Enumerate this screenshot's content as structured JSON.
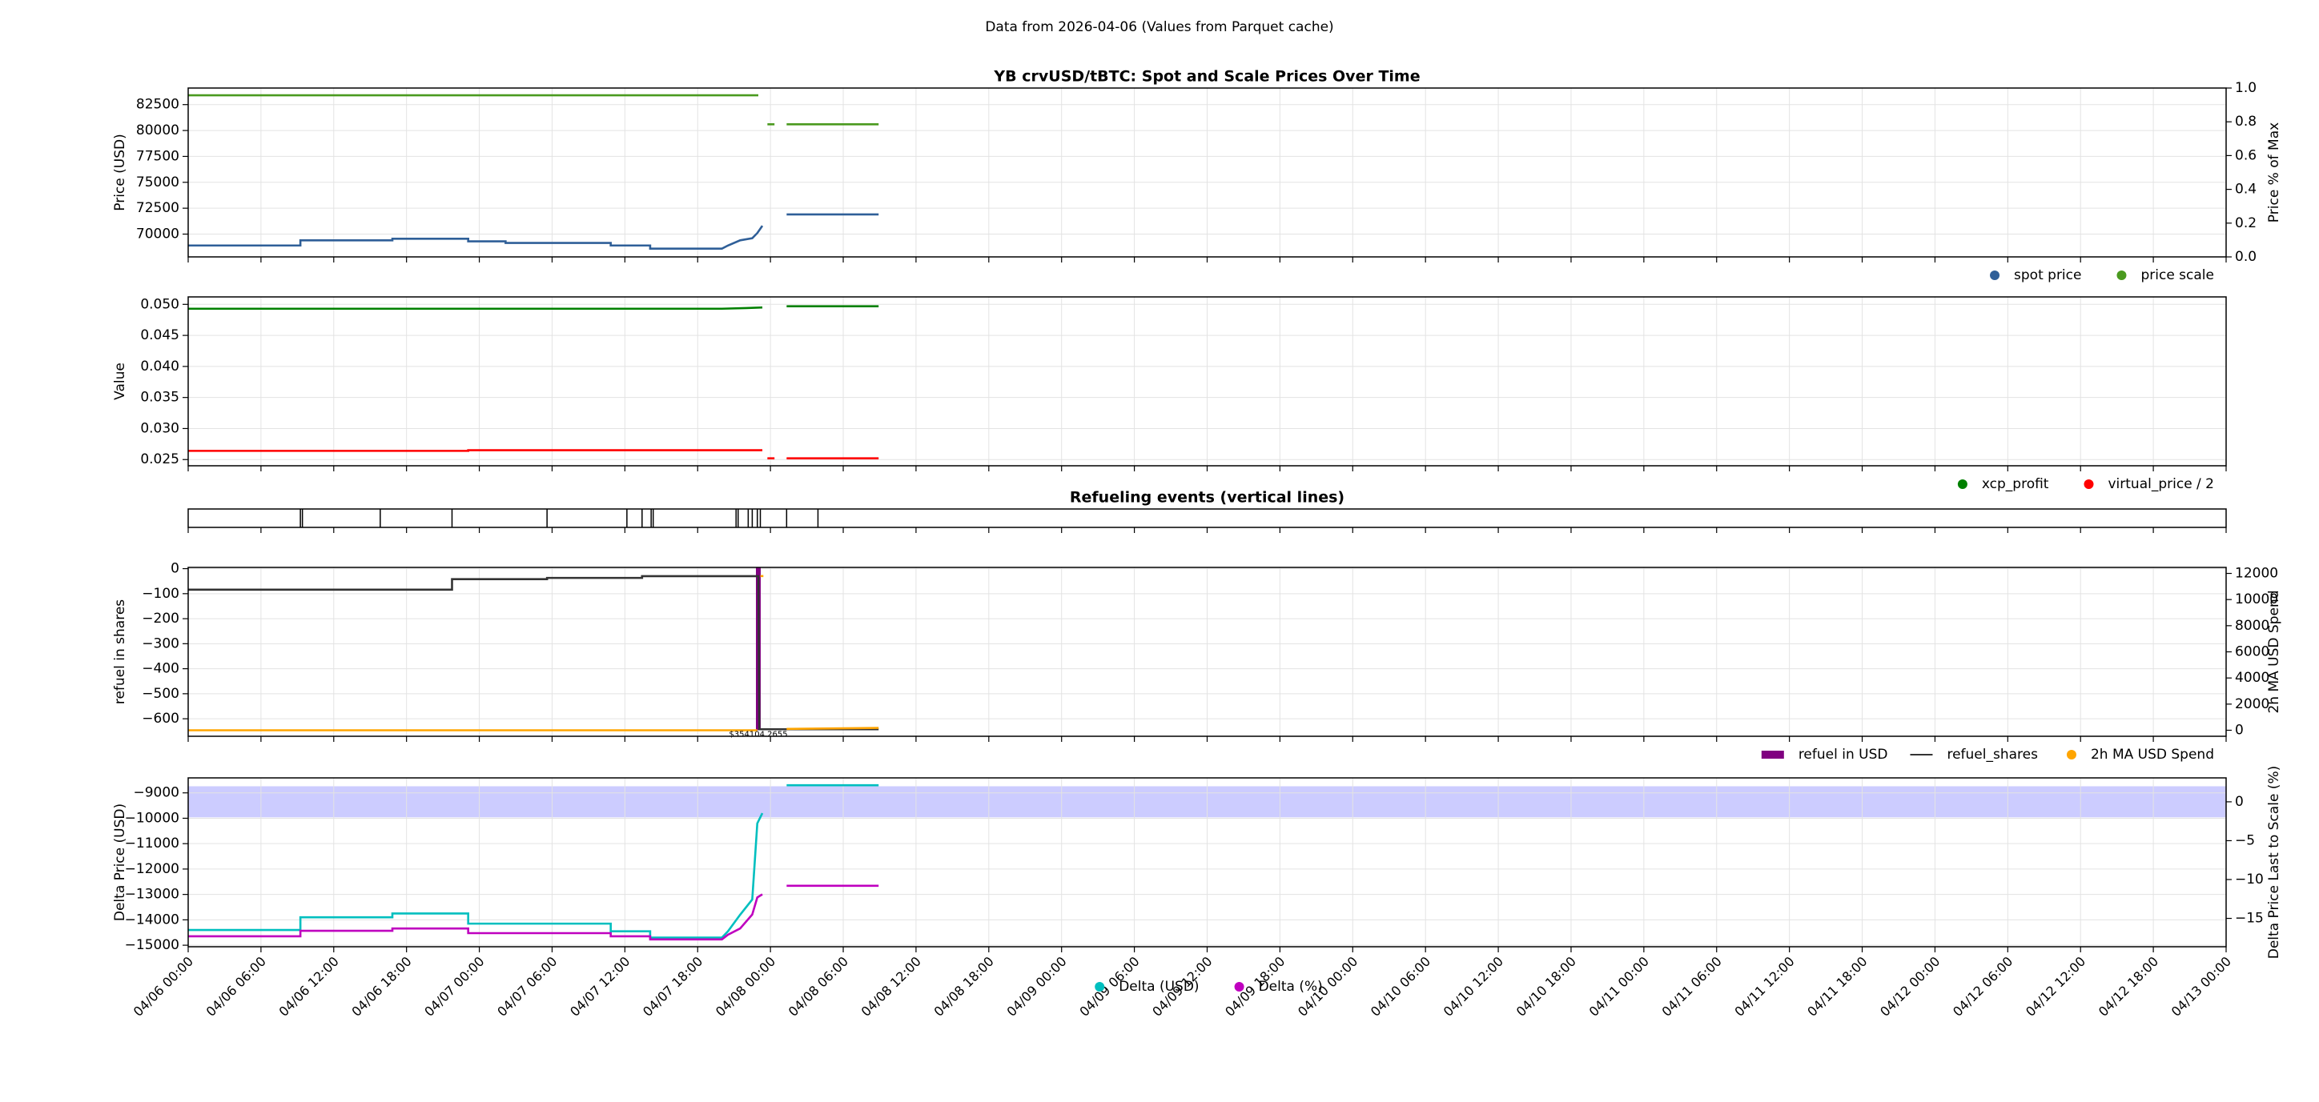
{
  "suptitle": "Data from 2026-04-06 (Values from Parquet cache)",
  "chart_data": [
    {
      "type": "line",
      "title": "YB crvUSD/tBTC: Spot and Scale Prices Over Time",
      "ylabel": "Price (USD)",
      "y2label": "Price % of Max",
      "ylim": [
        67800,
        84100
      ],
      "yticks": [
        70000,
        72500,
        75000,
        77500,
        80000,
        82500
      ],
      "y2lim": [
        0,
        1
      ],
      "y2ticks": [
        {
          "value": 0,
          "label": "0.0"
        },
        {
          "value": 0.2,
          "label": "0.2"
        },
        {
          "value": 0.4,
          "label": "0.4"
        },
        {
          "value": 0.6,
          "label": "0.6"
        },
        {
          "value": 0.8,
          "label": "0.8"
        },
        {
          "value": 1,
          "label": "1.0"
        }
      ],
      "grid": true,
      "legend": "lower right",
      "series": [
        {
          "name": "spot price",
          "color": "#2f5f98",
          "marker": "o",
          "x": [
            "04/06 00:00",
            "04/06 09:15",
            "04/06 09:15",
            "04/06 16:50",
            "04/06 16:50",
            "04/06 23:05",
            "04/06 23:05",
            "04/07 02:10",
            "04/07 02:10",
            "04/07 10:50",
            "04/07 10:50",
            "04/07 14:05",
            "04/07 14:05",
            "04/07 20:00",
            "04/07 20:30",
            "04/07 21:30",
            "04/07 22:30",
            "04/07 22:55",
            "04/07 23:20",
            "04/08 00:30",
            "04/08 01:20",
            "04/08 08:55"
          ],
          "values": [
            68900,
            68900,
            69400,
            69400,
            69550,
            69550,
            69300,
            69300,
            69150,
            69150,
            68900,
            68900,
            68600,
            68600,
            68900,
            69400,
            69600,
            70100,
            70800,
            null,
            71900,
            71900
          ]
        },
        {
          "name": "price scale",
          "color": "#4a9a1f",
          "marker": "o",
          "x": [
            "04/06 00:00",
            "04/07 23:00",
            "04/07 23:30",
            "04/07 23:45",
            "04/08 00:20",
            "04/08 00:50",
            "04/08 01:20",
            "04/08 08:55"
          ],
          "values": [
            83400,
            83400,
            null,
            80600,
            80600,
            null,
            80600,
            80600
          ]
        }
      ]
    },
    {
      "type": "line",
      "ylabel": "Value",
      "ylim": [
        0.024,
        0.0512
      ],
      "yticks": [
        0.025,
        {
          "value": 0.03,
          "label": "0.030"
        },
        0.035,
        {
          "value": 0.04,
          "label": "0.040"
        },
        0.045,
        {
          "value": 0.05,
          "label": "0.050"
        }
      ],
      "grid": true,
      "legend": "lower right",
      "series": [
        {
          "name": "xcp_profit",
          "color": "#008000",
          "marker": "o",
          "x": [
            "04/06 00:00",
            "04/07 20:00",
            "04/07 22:00",
            "04/07 23:20",
            "04/08 00:30",
            "04/08 01:20",
            "04/08 08:55"
          ],
          "values": [
            0.0493,
            0.0493,
            0.0494,
            0.0495,
            null,
            0.0497,
            0.0497
          ]
        },
        {
          "name": "virtual_price / 2",
          "color": "#ff0000",
          "marker": "o",
          "x": [
            "04/06 00:00",
            "04/06 23:05",
            "04/06 23:05",
            "04/07 23:20",
            "04/07 23:30",
            "04/07 23:45",
            "04/08 00:20",
            "04/08 00:50",
            "04/08 01:20",
            "04/08 08:55"
          ],
          "values": [
            0.0264,
            0.0264,
            0.0265,
            0.0265,
            null,
            0.0252,
            0.0252,
            null,
            0.0252,
            0.0252
          ]
        }
      ]
    },
    {
      "type": "event",
      "title": "Refueling events (vertical lines)",
      "color": "#000000",
      "x": [
        "04/06 09:15",
        "04/06 09:25",
        "04/06 15:50",
        "04/06 21:45",
        "04/07 05:35",
        "04/07 12:10",
        "04/07 13:25",
        "04/07 14:10",
        "04/07 14:20",
        "04/07 21:10",
        "04/07 21:20",
        "04/07 22:10",
        "04/07 22:30",
        "04/07 22:55",
        "04/07 23:10",
        "04/08 01:20",
        "04/08 03:55"
      ]
    },
    {
      "type": "line",
      "ylabel": "refuel in shares",
      "y2label": "2h MA USD Spend",
      "y2_color": "#ffa500",
      "ylim": [
        -670,
        5
      ],
      "yticks": [
        {
          "value": -600,
          "label": "−600"
        },
        {
          "value": -500,
          "label": "−500"
        },
        {
          "value": -400,
          "label": "−400"
        },
        {
          "value": -300,
          "label": "−300"
        },
        {
          "value": -200,
          "label": "−200"
        },
        {
          "value": -100,
          "label": "−100"
        },
        0
      ],
      "y2lim": [
        -460,
        12460
      ],
      "y2ticks": [
        0,
        2000,
        4000,
        6000,
        8000,
        10000,
        12000
      ],
      "grid": true,
      "legend": "lower right",
      "series": [
        {
          "name": "refuel in USD",
          "kind": "bar",
          "axis": "y2",
          "color": "#800080",
          "marker": "s",
          "x": [
            "04/07 23:00"
          ],
          "values": [
            354104.2655
          ],
          "value_labels": [
            "$354104.2655"
          ]
        },
        {
          "name": "refuel_shares",
          "color": "#333333",
          "marker": "-",
          "x": [
            "04/06 00:00",
            "04/06 21:45",
            "04/06 21:45",
            "04/07 05:35",
            "04/07 05:35",
            "04/07 13:25",
            "04/07 13:25",
            "04/07 23:00",
            "04/07 23:05",
            "04/08 08:55"
          ],
          "values": [
            -84,
            -84,
            -42,
            -42,
            -37,
            -37,
            -30,
            -30,
            -642,
            -642
          ]
        },
        {
          "name": "2h MA USD Spend",
          "axis": "y2",
          "color": "#ffa500",
          "marker": "o",
          "x": [
            "04/06 00:00",
            "04/07 22:55",
            "04/07 23:00",
            "04/07 23:10",
            "04/07 23:25",
            "04/07 23:40",
            "04/08 01:20",
            "04/08 08:55"
          ],
          "values": [
            0,
            0,
            null,
            11800,
            11800,
            null,
            100,
            180
          ]
        }
      ]
    },
    {
      "type": "line",
      "ylabel": "Delta Price (USD)",
      "y2label": "Delta Price Last to Scale (%)",
      "y_color": "#17becf",
      "y2_color": "#bf00bf",
      "ylim": [
        -15060,
        -8410
      ],
      "yticks": [
        {
          "value": -15000,
          "label": "−15000"
        },
        {
          "value": -14000,
          "label": "−14000"
        },
        {
          "value": -13000,
          "label": "−13000"
        },
        {
          "value": -12000,
          "label": "−12000"
        },
        {
          "value": -11000,
          "label": "−11000"
        },
        {
          "value": -10000,
          "label": "−10000"
        },
        {
          "value": -9000,
          "label": "−9000"
        }
      ],
      "y2lim": [
        -18.65,
        3.08
      ],
      "y2ticks": [
        {
          "value": -15,
          "label": "−15"
        },
        {
          "value": -10,
          "label": "−10"
        },
        {
          "value": -5,
          "label": "−5"
        },
        0
      ],
      "axhspan": {
        "axis": "y2",
        "range": [
          -2,
          2
        ],
        "color": "#ccccff"
      },
      "grid": true,
      "legend": "lower center",
      "xlim": [
        "04/06 00:00",
        "04/13 00:00"
      ],
      "xticks": [
        "04/06 00:00",
        "04/06 06:00",
        "04/06 12:00",
        "04/06 18:00",
        "04/07 00:00",
        "04/07 06:00",
        "04/07 12:00",
        "04/07 18:00",
        "04/08 00:00",
        "04/08 06:00",
        "04/08 12:00",
        "04/08 18:00",
        "04/09 00:00",
        "04/09 06:00",
        "04/09 12:00",
        "04/09 18:00",
        "04/10 00:00",
        "04/10 06:00",
        "04/10 12:00",
        "04/10 18:00",
        "04/11 00:00",
        "04/11 06:00",
        "04/11 12:00",
        "04/11 18:00",
        "04/12 00:00",
        "04/12 06:00",
        "04/12 12:00",
        "04/12 18:00",
        "04/13 00:00"
      ],
      "series": [
        {
          "name": "Delta (USD)",
          "color": "#00bfbf",
          "marker": "o",
          "x": [
            "04/06 00:00",
            "04/06 09:15",
            "04/06 09:15",
            "04/06 16:50",
            "04/06 16:50",
            "04/06 23:05",
            "04/06 23:05",
            "04/07 10:50",
            "04/07 10:50",
            "04/07 14:05",
            "04/07 14:05",
            "04/07 20:00",
            "04/07 20:30",
            "04/07 21:30",
            "04/07 22:30",
            "04/07 22:55",
            "04/07 23:20",
            "04/08 00:30",
            "04/08 01:20",
            "04/08 08:55"
          ],
          "values": [
            -14400,
            -14400,
            -13900,
            -13900,
            -13750,
            -13750,
            -14150,
            -14150,
            -14450,
            -14450,
            -14700,
            -14700,
            -14450,
            -13800,
            -13200,
            -10200,
            -9800,
            null,
            -8700,
            -8700
          ]
        },
        {
          "name": "Delta (%)",
          "axis": "y2",
          "color": "#bf00bf",
          "marker": "o",
          "x": [
            "04/06 00:00",
            "04/06 09:15",
            "04/06 09:15",
            "04/06 16:50",
            "04/06 16:50",
            "04/06 23:05",
            "04/06 23:05",
            "04/07 10:50",
            "04/07 10:50",
            "04/07 14:05",
            "04/07 14:05",
            "04/07 20:00",
            "04/07 20:30",
            "04/07 21:30",
            "04/07 22:30",
            "04/07 22:55",
            "04/07 23:20",
            "04/08 00:30",
            "04/08 01:20",
            "04/08 08:55"
          ],
          "values": [
            -17.3,
            -17.3,
            -16.6,
            -16.6,
            -16.3,
            -16.3,
            -16.9,
            -16.9,
            -17.3,
            -17.3,
            -17.7,
            -17.7,
            -17.1,
            -16.3,
            -14.5,
            -12.3,
            -11.9,
            null,
            -10.8,
            -10.8
          ]
        }
      ]
    }
  ]
}
